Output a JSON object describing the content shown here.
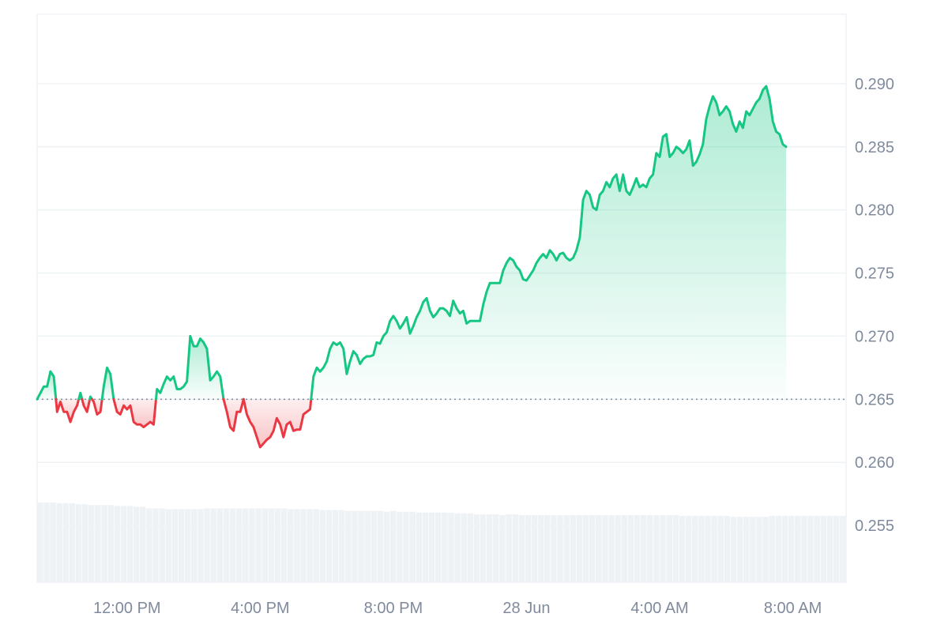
{
  "chart_data": {
    "type": "area",
    "title": "",
    "xlabel": "",
    "ylabel": "",
    "baseline": 0.265,
    "ylim": [
      0.2505,
      0.2955
    ],
    "y_ticks": [
      0.29,
      0.285,
      0.28,
      0.275,
      0.27,
      0.265,
      0.26,
      0.255
    ],
    "y_tick_labels": [
      "0.290",
      "0.285",
      "0.280",
      "0.275",
      "0.270",
      "0.265",
      "0.260",
      "0.255"
    ],
    "x_ticks": [
      {
        "label": "12:00 PM",
        "t": 12.0
      },
      {
        "label": "4:00 PM",
        "t": 16.0
      },
      {
        "label": "8:00 PM",
        "t": 20.0
      },
      {
        "label": "28 Jun",
        "t": 24.0
      },
      {
        "label": "4:00 AM",
        "t": 28.0
      },
      {
        "label": "8:00 AM",
        "t": 32.0
      }
    ],
    "xlim": [
      9.3,
      33.6
    ],
    "colors": {
      "up": "#16c784",
      "down": "#ea3943",
      "grid": "#eff2f5",
      "axis_text": "#808a9d",
      "volume": "#eff2f5"
    },
    "series": [
      {
        "values": [
          [
            9.3,
            0.265
          ],
          [
            9.4,
            0.2655
          ],
          [
            9.5,
            0.266
          ],
          [
            9.6,
            0.266
          ],
          [
            9.7,
            0.2672
          ],
          [
            9.8,
            0.2668
          ],
          [
            9.9,
            0.264
          ],
          [
            10.0,
            0.2648
          ],
          [
            10.1,
            0.264
          ],
          [
            10.2,
            0.264
          ],
          [
            10.3,
            0.2632
          ],
          [
            10.4,
            0.264
          ],
          [
            10.5,
            0.2645
          ],
          [
            10.6,
            0.2655
          ],
          [
            10.7,
            0.2645
          ],
          [
            10.8,
            0.264
          ],
          [
            10.9,
            0.2652
          ],
          [
            11.0,
            0.2648
          ],
          [
            11.1,
            0.2638
          ],
          [
            11.2,
            0.264
          ],
          [
            11.3,
            0.266
          ],
          [
            11.4,
            0.2675
          ],
          [
            11.5,
            0.267
          ],
          [
            11.6,
            0.265
          ],
          [
            11.7,
            0.264
          ],
          [
            11.8,
            0.2638
          ],
          [
            11.9,
            0.2645
          ],
          [
            12.0,
            0.2642
          ],
          [
            12.1,
            0.2645
          ],
          [
            12.2,
            0.2632
          ],
          [
            12.3,
            0.263
          ],
          [
            12.4,
            0.263
          ],
          [
            12.5,
            0.2628
          ],
          [
            12.6,
            0.263
          ],
          [
            12.7,
            0.2632
          ],
          [
            12.8,
            0.263
          ],
          [
            12.9,
            0.2658
          ],
          [
            13.0,
            0.2655
          ],
          [
            13.1,
            0.2662
          ],
          [
            13.2,
            0.2668
          ],
          [
            13.3,
            0.2665
          ],
          [
            13.4,
            0.2668
          ],
          [
            13.5,
            0.2658
          ],
          [
            13.6,
            0.2658
          ],
          [
            13.7,
            0.266
          ],
          [
            13.8,
            0.2664
          ],
          [
            13.9,
            0.27
          ],
          [
            14.0,
            0.2692
          ],
          [
            14.1,
            0.2692
          ],
          [
            14.2,
            0.2698
          ],
          [
            14.3,
            0.2695
          ],
          [
            14.4,
            0.269
          ],
          [
            14.5,
            0.2665
          ],
          [
            14.6,
            0.2668
          ],
          [
            14.7,
            0.2672
          ],
          [
            14.8,
            0.2668
          ],
          [
            14.9,
            0.265
          ],
          [
            15.0,
            0.264
          ],
          [
            15.1,
            0.2628
          ],
          [
            15.2,
            0.2625
          ],
          [
            15.3,
            0.264
          ],
          [
            15.4,
            0.264
          ],
          [
            15.5,
            0.265
          ],
          [
            15.6,
            0.2638
          ],
          [
            15.7,
            0.2632
          ],
          [
            15.8,
            0.2628
          ],
          [
            15.9,
            0.262
          ],
          [
            16.0,
            0.2612
          ],
          [
            16.1,
            0.2615
          ],
          [
            16.2,
            0.2618
          ],
          [
            16.3,
            0.262
          ],
          [
            16.4,
            0.2625
          ],
          [
            16.5,
            0.2635
          ],
          [
            16.6,
            0.263
          ],
          [
            16.7,
            0.262
          ],
          [
            16.8,
            0.263
          ],
          [
            16.9,
            0.2632
          ],
          [
            17.0,
            0.2625
          ],
          [
            17.1,
            0.2626
          ],
          [
            17.2,
            0.2626
          ],
          [
            17.3,
            0.2638
          ],
          [
            17.4,
            0.264
          ],
          [
            17.5,
            0.2642
          ],
          [
            17.6,
            0.2668
          ],
          [
            17.7,
            0.2675
          ],
          [
            17.8,
            0.2672
          ],
          [
            17.9,
            0.2675
          ],
          [
            18.0,
            0.268
          ],
          [
            18.1,
            0.269
          ],
          [
            18.2,
            0.2695
          ],
          [
            18.3,
            0.2693
          ],
          [
            18.4,
            0.2695
          ],
          [
            18.5,
            0.269
          ],
          [
            18.6,
            0.267
          ],
          [
            18.7,
            0.268
          ],
          [
            18.8,
            0.2688
          ],
          [
            18.9,
            0.2685
          ],
          [
            19.0,
            0.2678
          ],
          [
            19.1,
            0.2682
          ],
          [
            19.2,
            0.2684
          ],
          [
            19.3,
            0.2684
          ],
          [
            19.4,
            0.2685
          ],
          [
            19.5,
            0.2695
          ],
          [
            19.6,
            0.2694
          ],
          [
            19.7,
            0.27
          ],
          [
            19.8,
            0.2703
          ],
          [
            19.9,
            0.2712
          ],
          [
            20.0,
            0.2716
          ],
          [
            20.1,
            0.2712
          ],
          [
            20.2,
            0.2706
          ],
          [
            20.3,
            0.271
          ],
          [
            20.4,
            0.2715
          ],
          [
            20.5,
            0.2702
          ],
          [
            20.6,
            0.2708
          ],
          [
            20.7,
            0.2715
          ],
          [
            20.8,
            0.272
          ],
          [
            20.9,
            0.2727
          ],
          [
            21.0,
            0.273
          ],
          [
            21.1,
            0.272
          ],
          [
            21.2,
            0.2715
          ],
          [
            21.3,
            0.2718
          ],
          [
            21.4,
            0.2722
          ],
          [
            21.5,
            0.2722
          ],
          [
            21.6,
            0.272
          ],
          [
            21.7,
            0.2716
          ],
          [
            21.8,
            0.2728
          ],
          [
            21.9,
            0.2722
          ],
          [
            22.0,
            0.2718
          ],
          [
            22.1,
            0.272
          ],
          [
            22.2,
            0.271
          ],
          [
            22.3,
            0.2712
          ],
          [
            22.4,
            0.2712
          ],
          [
            22.5,
            0.2712
          ],
          [
            22.6,
            0.2712
          ],
          [
            22.7,
            0.2725
          ],
          [
            22.8,
            0.2735
          ],
          [
            22.9,
            0.2742
          ],
          [
            23.0,
            0.2742
          ],
          [
            23.1,
            0.2742
          ],
          [
            23.2,
            0.2742
          ],
          [
            23.3,
            0.2752
          ],
          [
            23.4,
            0.2758
          ],
          [
            23.5,
            0.2762
          ],
          [
            23.6,
            0.276
          ],
          [
            23.7,
            0.2755
          ],
          [
            23.8,
            0.2752
          ],
          [
            23.9,
            0.2745
          ],
          [
            24.0,
            0.2744
          ],
          [
            24.1,
            0.2748
          ],
          [
            24.2,
            0.2752
          ],
          [
            24.3,
            0.2758
          ],
          [
            24.4,
            0.2762
          ],
          [
            24.5,
            0.2765
          ],
          [
            24.6,
            0.2762
          ],
          [
            24.7,
            0.2768
          ],
          [
            24.8,
            0.2765
          ],
          [
            24.9,
            0.276
          ],
          [
            25.0,
            0.2765
          ],
          [
            25.1,
            0.2766
          ],
          [
            25.2,
            0.2762
          ],
          [
            25.3,
            0.276
          ],
          [
            25.4,
            0.2762
          ],
          [
            25.5,
            0.2768
          ],
          [
            25.6,
            0.2778
          ],
          [
            25.7,
            0.2808
          ],
          [
            25.8,
            0.2815
          ],
          [
            25.9,
            0.2812
          ],
          [
            26.0,
            0.2802
          ],
          [
            26.1,
            0.28
          ],
          [
            26.2,
            0.2812
          ],
          [
            26.3,
            0.2815
          ],
          [
            26.4,
            0.2822
          ],
          [
            26.5,
            0.2818
          ],
          [
            26.6,
            0.2825
          ],
          [
            26.7,
            0.2828
          ],
          [
            26.8,
            0.2815
          ],
          [
            26.9,
            0.2828
          ],
          [
            27.0,
            0.2815
          ],
          [
            27.1,
            0.2812
          ],
          [
            27.2,
            0.2818
          ],
          [
            27.3,
            0.2825
          ],
          [
            27.4,
            0.2818
          ],
          [
            27.5,
            0.282
          ],
          [
            27.6,
            0.2818
          ],
          [
            27.7,
            0.2825
          ],
          [
            27.8,
            0.2828
          ],
          [
            27.9,
            0.2845
          ],
          [
            28.0,
            0.2842
          ],
          [
            28.1,
            0.2858
          ],
          [
            28.2,
            0.286
          ],
          [
            28.3,
            0.2842
          ],
          [
            28.4,
            0.2845
          ],
          [
            28.5,
            0.285
          ],
          [
            28.6,
            0.2848
          ],
          [
            28.7,
            0.2845
          ],
          [
            28.8,
            0.2848
          ],
          [
            28.9,
            0.2855
          ],
          [
            29.0,
            0.2835
          ],
          [
            29.1,
            0.2838
          ],
          [
            29.2,
            0.2844
          ],
          [
            29.3,
            0.2852
          ],
          [
            29.4,
            0.2872
          ],
          [
            29.5,
            0.2882
          ],
          [
            29.6,
            0.289
          ],
          [
            29.7,
            0.2885
          ],
          [
            29.8,
            0.2875
          ],
          [
            29.9,
            0.2878
          ],
          [
            30.0,
            0.2882
          ],
          [
            30.1,
            0.2878
          ],
          [
            30.2,
            0.2868
          ],
          [
            30.3,
            0.2862
          ],
          [
            30.4,
            0.287
          ],
          [
            30.5,
            0.2865
          ],
          [
            30.6,
            0.2878
          ],
          [
            30.7,
            0.2875
          ],
          [
            30.8,
            0.288
          ],
          [
            30.9,
            0.2885
          ],
          [
            31.0,
            0.2888
          ],
          [
            31.1,
            0.2895
          ],
          [
            31.2,
            0.2898
          ],
          [
            31.3,
            0.2888
          ],
          [
            31.4,
            0.287
          ],
          [
            31.5,
            0.2862
          ],
          [
            31.6,
            0.286
          ],
          [
            31.7,
            0.2852
          ],
          [
            31.8,
            0.285
          ]
        ]
      }
    ],
    "volume": [
      0.95,
      0.95,
      0.95,
      0.94,
      0.94,
      0.94,
      0.93,
      0.93,
      0.92,
      0.92,
      0.92,
      0.92,
      0.91,
      0.91,
      0.91,
      0.9,
      0.9,
      0.88,
      0.88,
      0.88,
      0.87,
      0.87,
      0.87,
      0.87,
      0.87,
      0.87,
      0.88,
      0.88,
      0.88,
      0.88,
      0.88,
      0.88,
      0.88,
      0.88,
      0.88,
      0.88,
      0.88,
      0.88,
      0.88,
      0.87,
      0.87,
      0.87,
      0.87,
      0.87,
      0.86,
      0.86,
      0.86,
      0.86,
      0.85,
      0.85,
      0.85,
      0.85,
      0.85,
      0.85,
      0.84,
      0.85,
      0.84,
      0.84,
      0.84,
      0.83,
      0.83,
      0.83,
      0.83,
      0.83,
      0.83,
      0.82,
      0.82,
      0.82,
      0.81,
      0.81,
      0.81,
      0.81,
      0.8,
      0.81,
      0.81,
      0.8,
      0.8,
      0.8,
      0.8,
      0.8,
      0.8,
      0.8,
      0.8,
      0.8,
      0.8,
      0.8,
      0.8,
      0.8,
      0.8,
      0.8,
      0.8,
      0.8,
      0.8,
      0.8,
      0.8,
      0.8,
      0.8,
      0.8,
      0.8,
      0.8,
      0.79,
      0.79,
      0.79,
      0.79,
      0.79,
      0.79,
      0.79,
      0.79,
      0.78,
      0.78,
      0.78,
      0.78,
      0.78,
      0.78,
      0.79,
      0.79,
      0.79,
      0.79,
      0.79,
      0.79,
      0.79,
      0.79,
      0.79,
      0.79,
      0.79,
      0.79
    ]
  }
}
